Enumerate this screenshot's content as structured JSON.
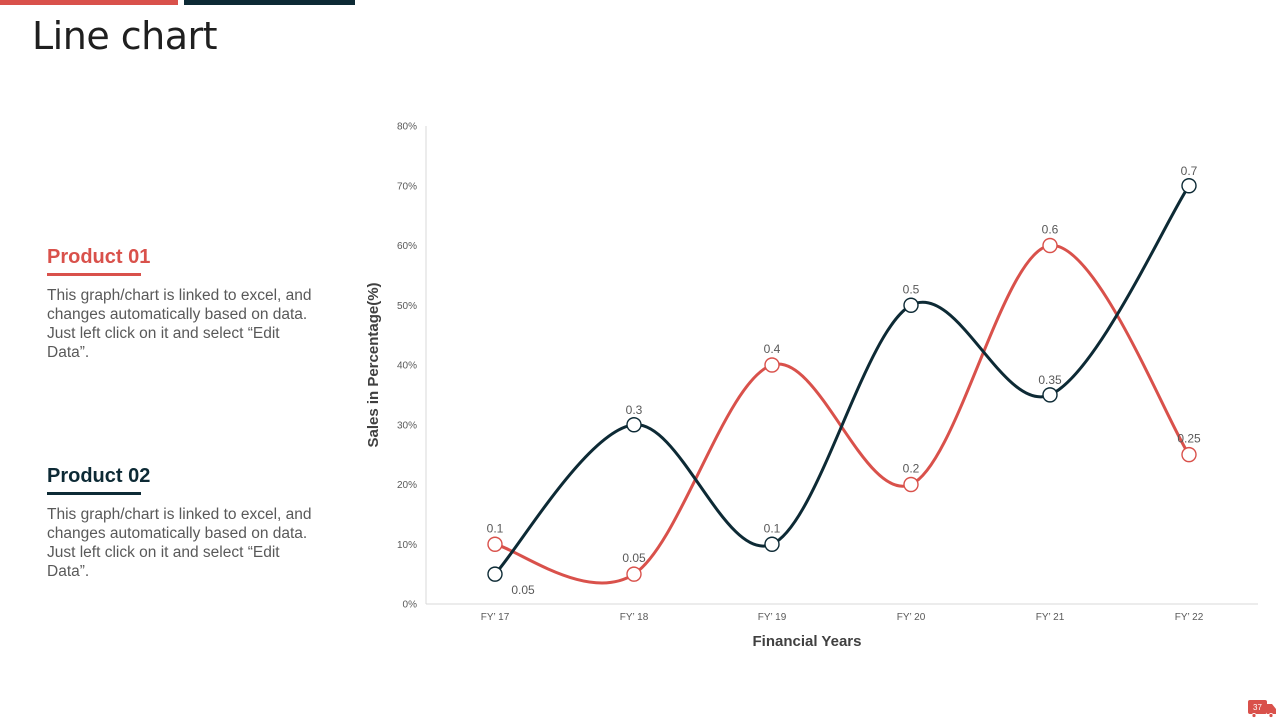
{
  "page": {
    "title": "Line chart",
    "page_number": "37"
  },
  "colors": {
    "accent_red": "#d9514b",
    "accent_dark": "#0d2a35",
    "grid_axis": "#d9d9d9"
  },
  "products": [
    {
      "title": "Product 01",
      "description": "This graph/chart is linked to excel, and changes automatically based on data. Just left click on it and select “Edit Data”.",
      "color": "#d9514b"
    },
    {
      "title": "Product 02",
      "description": "This graph/chart is linked to excel, and changes automatically based on data. Just left click on it and select “Edit Data”.",
      "color": "#0d2a35"
    }
  ],
  "chart_data": {
    "type": "line",
    "smooth": true,
    "categories": [
      "FY’ 17",
      "FY’ 18",
      "FY’ 19",
      "FY’ 20",
      "FY’ 21",
      "FY’ 22"
    ],
    "series": [
      {
        "color": "#d9514b",
        "values": [
          0.1,
          0.05,
          0.4,
          0.2,
          0.6,
          0.25
        ],
        "labels": [
          "0.1",
          "0.05",
          "0.4",
          "0.2",
          "0.6",
          "0.25"
        ]
      },
      {
        "color": "#0d2a35",
        "values": [
          0.05,
          0.3,
          0.1,
          0.5,
          0.35,
          0.7
        ],
        "labels": [
          "0.05",
          "0.3",
          "0.1",
          "0.5",
          "0.35",
          "0.7"
        ]
      }
    ],
    "y_ticks": [
      "0%",
      "10%",
      "20%",
      "30%",
      "40%",
      "50%",
      "60%",
      "70%",
      "80%"
    ],
    "ylim": [
      0,
      0.8
    ],
    "xlabel": "Financial Years",
    "ylabel": "Sales in Percentage(%)",
    "grid": false
  }
}
